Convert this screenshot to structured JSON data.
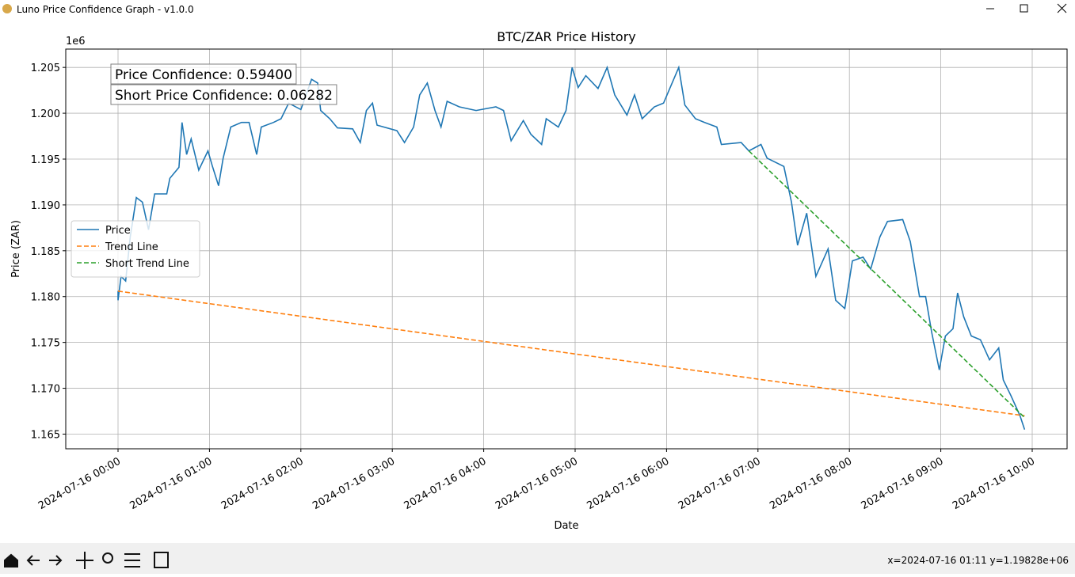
{
  "window": {
    "title": "Luno Price Confidence Graph - v1.0.0"
  },
  "toolbar": {
    "status": "x=2024-07-16 01:11 y=1.19828e+06"
  },
  "chart_data": {
    "type": "line",
    "title": "BTC/ZAR Price History",
    "x_label": "Date",
    "y_label": "Price (ZAR)",
    "y_offset_label": "1e6",
    "annotations": [
      "Price Confidence: 0.59400",
      "Short Price Confidence: 0.06282"
    ],
    "grid": true,
    "legend": "center left",
    "ylim": [
      1.1634,
      1.207
    ],
    "yticks": [
      {
        "value": 1.165,
        "label": "1.165"
      },
      {
        "value": 1.17,
        "label": "1.170"
      },
      {
        "value": 1.175,
        "label": "1.175"
      },
      {
        "value": 1.18,
        "label": "1.180"
      },
      {
        "value": 1.185,
        "label": "1.185"
      },
      {
        "value": 1.19,
        "label": "1.190"
      },
      {
        "value": 1.195,
        "label": "1.195"
      },
      {
        "value": 1.2,
        "label": "1.200"
      },
      {
        "value": 1.205,
        "label": "1.205"
      }
    ],
    "xticks": [
      "2024-07-16 00:00",
      "2024-07-16 01:00",
      "2024-07-16 02:00",
      "2024-07-16 03:00",
      "2024-07-16 04:00",
      "2024-07-16 05:00",
      "2024-07-16 06:00",
      "2024-07-16 07:00",
      "2024-07-16 08:00",
      "2024-07-16 09:00",
      "2024-07-16 10:00"
    ],
    "series": [
      {
        "name": "Price",
        "color": "#1f77b4",
        "linestyle": "solid",
        "x": [
          "2024-07-16 00:00",
          "2024-07-16 00:00",
          "2024-07-16 00:02",
          "2024-07-16 00:05",
          "2024-07-16 00:08",
          "2024-07-16 00:12",
          "2024-07-16 00:16",
          "2024-07-16 00:20",
          "2024-07-16 00:24",
          "2024-07-16 00:32",
          "2024-07-16 00:34",
          "2024-07-16 00:40",
          "2024-07-16 00:42",
          "2024-07-16 00:45",
          "2024-07-16 00:48",
          "2024-07-16 00:53",
          "2024-07-16 00:59",
          "2024-07-16 01:02",
          "2024-07-16 01:06",
          "2024-07-16 01:09",
          "2024-07-16 01:14",
          "2024-07-16 01:21",
          "2024-07-16 01:26",
          "2024-07-16 01:31",
          "2024-07-16 01:34",
          "2024-07-16 01:42",
          "2024-07-16 01:47",
          "2024-07-16 01:52",
          "2024-07-16 02:00",
          "2024-07-16 02:07",
          "2024-07-16 02:11",
          "2024-07-16 02:13",
          "2024-07-16 02:19",
          "2024-07-16 02:24",
          "2024-07-16 02:34",
          "2024-07-16 02:39",
          "2024-07-16 02:43",
          "2024-07-16 02:47",
          "2024-07-16 02:50",
          "2024-07-16 03:03",
          "2024-07-16 03:08",
          "2024-07-16 03:14",
          "2024-07-16 03:18",
          "2024-07-16 03:23",
          "2024-07-16 03:28",
          "2024-07-16 03:32",
          "2024-07-16 03:36",
          "2024-07-16 03:44",
          "2024-07-16 03:55",
          "2024-07-16 04:08",
          "2024-07-16 04:13",
          "2024-07-16 04:18",
          "2024-07-16 04:26",
          "2024-07-16 04:31",
          "2024-07-16 04:38",
          "2024-07-16 04:41",
          "2024-07-16 04:49",
          "2024-07-16 04:54",
          "2024-07-16 04:58",
          "2024-07-16 05:02",
          "2024-07-16 05:07",
          "2024-07-16 05:15",
          "2024-07-16 05:21",
          "2024-07-16 05:26",
          "2024-07-16 05:34",
          "2024-07-16 05:39",
          "2024-07-16 05:44",
          "2024-07-16 05:52",
          "2024-07-16 05:58",
          "2024-07-16 06:08",
          "2024-07-16 06:12",
          "2024-07-16 06:19",
          "2024-07-16 06:25",
          "2024-07-16 06:33",
          "2024-07-16 06:36",
          "2024-07-16 06:49",
          "2024-07-16 06:54",
          "2024-07-16 07:02",
          "2024-07-16 07:06",
          "2024-07-16 07:17",
          "2024-07-16 07:22",
          "2024-07-16 07:26",
          "2024-07-16 07:32",
          "2024-07-16 07:38",
          "2024-07-16 07:46",
          "2024-07-16 07:51",
          "2024-07-16 07:57",
          "2024-07-16 08:02",
          "2024-07-16 08:09",
          "2024-07-16 08:14",
          "2024-07-16 08:20",
          "2024-07-16 08:25",
          "2024-07-16 08:35",
          "2024-07-16 08:40",
          "2024-07-16 08:46",
          "2024-07-16 08:50",
          "2024-07-16 08:54",
          "2024-07-16 08:59",
          "2024-07-16 09:03",
          "2024-07-16 09:08",
          "2024-07-16 09:11",
          "2024-07-16 09:15",
          "2024-07-16 09:20",
          "2024-07-16 09:26",
          "2024-07-16 09:32",
          "2024-07-16 09:38",
          "2024-07-16 09:41",
          "2024-07-16 09:46",
          "2024-07-16 09:52",
          "2024-07-16 09:55"
        ],
        "values": [
          1.1806,
          1.1796,
          1.1822,
          1.1817,
          1.1865,
          1.1908,
          1.1903,
          1.1873,
          1.1912,
          1.1912,
          1.1929,
          1.1941,
          1.199,
          1.1955,
          1.1972,
          1.1938,
          1.1959,
          1.1942,
          1.1921,
          1.1951,
          1.1985,
          1.199,
          1.199,
          1.1955,
          1.1985,
          1.199,
          1.1994,
          1.2011,
          1.2004,
          1.2037,
          1.2033,
          1.2003,
          1.1994,
          1.1984,
          1.1983,
          1.1968,
          1.2003,
          1.2011,
          1.1987,
          1.1981,
          1.1968,
          1.1985,
          1.202,
          1.2033,
          1.2003,
          1.1985,
          1.2013,
          1.2007,
          1.2003,
          1.2007,
          1.2003,
          1.197,
          1.1992,
          1.1977,
          1.1966,
          1.1994,
          1.1985,
          1.2003,
          1.205,
          1.2028,
          1.2041,
          1.2027,
          1.205,
          1.202,
          1.1998,
          1.202,
          1.1994,
          1.2007,
          1.2011,
          1.205,
          1.2009,
          1.1994,
          1.199,
          1.1985,
          1.1966,
          1.1968,
          1.1959,
          1.1966,
          1.1951,
          1.1942,
          1.1903,
          1.1856,
          1.1891,
          1.1822,
          1.1852,
          1.1796,
          1.1787,
          1.1839,
          1.1843,
          1.183,
          1.1865,
          1.1882,
          1.1884,
          1.186,
          1.18,
          1.18,
          1.1761,
          1.172,
          1.1757,
          1.1765,
          1.1804,
          1.1778,
          1.1757,
          1.1753,
          1.1731,
          1.1744,
          1.1709,
          1.1692,
          1.167,
          1.1655
        ]
      },
      {
        "name": "Trend Line",
        "color": "#ff7f0e",
        "linestyle": "dashed",
        "x": [
          "2024-07-16 00:00",
          "2024-07-16 09:55"
        ],
        "values": [
          1.1806,
          1.167
        ]
      },
      {
        "name": "Short Trend Line",
        "color": "#2ca02c",
        "linestyle": "dashed",
        "x": [
          "2024-07-16 06:54",
          "2024-07-16 09:55"
        ],
        "values": [
          1.1959,
          1.1668
        ]
      }
    ]
  }
}
